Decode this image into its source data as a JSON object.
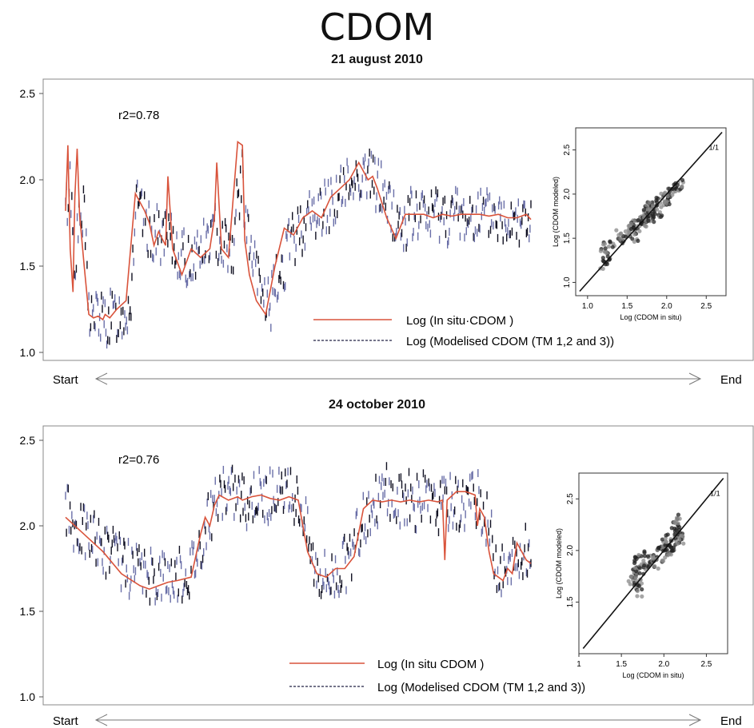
{
  "title": "CDOM",
  "chart_data": [
    {
      "type": "line",
      "subtitle": "21 august 2010",
      "annotation": "r2=0.78",
      "xlabel_start": "Start",
      "xlabel_end": "End",
      "ylim": [
        1.0,
        2.5
      ],
      "yticks": [
        "1.0",
        "1.5",
        "2.0",
        "2.5"
      ],
      "legend": [
        {
          "label": "Log (In situ·CDOM )",
          "color": "#d9533b",
          "style": "solid"
        },
        {
          "label": "Log (Modelised CDOM  (TM 1,2 and 3))",
          "color": "#222244",
          "style": "dashed"
        }
      ],
      "series": [
        {
          "name": "Log (In situ·CDOM )",
          "x": [
            0,
            0.5,
            1,
            1.6,
            2,
            2.5,
            3,
            4,
            5,
            6,
            7,
            8,
            8.5,
            9.5,
            11,
            13,
            15,
            17,
            18,
            19,
            20,
            21.5,
            22,
            23,
            25,
            27,
            29,
            31,
            32,
            32.5,
            33.5,
            35,
            37,
            38,
            38.5,
            39,
            39.5,
            41,
            43,
            45,
            47,
            49,
            51,
            53,
            55,
            57,
            59,
            61,
            63,
            64,
            65,
            66,
            67,
            69,
            71,
            73,
            75,
            77,
            79,
            81,
            83,
            85,
            87,
            89,
            91,
            93,
            95,
            97,
            99,
            100
          ],
          "values": [
            1.82,
            2.2,
            1.6,
            1.35,
            1.9,
            2.18,
            1.8,
            1.5,
            1.22,
            1.2,
            1.21,
            1.19,
            1.22,
            1.2,
            1.25,
            1.3,
            1.92,
            1.82,
            1.75,
            1.62,
            1.7,
            1.62,
            2.02,
            1.6,
            1.45,
            1.6,
            1.55,
            1.6,
            1.78,
            2.1,
            1.6,
            1.55,
            2.22,
            2.2,
            1.65,
            1.55,
            1.45,
            1.3,
            1.22,
            1.5,
            1.72,
            1.68,
            1.78,
            1.82,
            1.78,
            1.9,
            1.95,
            2.0,
            2.1,
            2.05,
            2.0,
            2.02,
            1.95,
            1.78,
            1.66,
            1.8,
            1.8,
            1.8,
            1.78,
            1.8,
            1.79,
            1.8,
            1.8,
            1.8,
            1.79,
            1.8,
            1.78,
            1.78,
            1.8,
            1.77
          ]
        },
        {
          "name": "Log (Modelised CDOM  (TM 1,2 and 3))",
          "x": [
            0,
            1,
            2,
            3,
            4,
            5,
            6,
            7,
            8,
            10,
            12,
            14,
            15,
            16,
            18,
            20,
            22,
            24,
            26,
            28,
            30,
            32,
            34,
            36,
            37,
            38,
            39,
            40,
            41,
            42,
            44,
            46,
            48,
            50,
            52,
            54,
            56,
            58,
            60,
            62,
            64,
            66,
            68,
            70,
            72,
            74,
            76,
            78,
            80,
            82,
            84,
            86,
            88,
            90,
            92,
            94,
            96,
            98,
            100
          ],
          "values": [
            1.8,
            2.0,
            1.55,
            1.75,
            1.8,
            1.25,
            1.2,
            1.22,
            1.18,
            1.2,
            1.22,
            1.28,
            1.85,
            1.8,
            1.7,
            1.68,
            1.65,
            1.6,
            1.52,
            1.58,
            1.62,
            1.7,
            1.65,
            1.6,
            1.9,
            2.0,
            1.7,
            1.55,
            1.45,
            1.35,
            1.28,
            1.45,
            1.6,
            1.7,
            1.78,
            1.8,
            1.85,
            1.9,
            1.95,
            2.0,
            2.05,
            2.0,
            1.95,
            1.82,
            1.72,
            1.78,
            1.8,
            1.78,
            1.82,
            1.78,
            1.8,
            1.77,
            1.82,
            1.78,
            1.8,
            1.76,
            1.82,
            1.78,
            1.75
          ]
        }
      ],
      "inset": {
        "type": "scatter",
        "xlabel": "Log (CDOM in situ)",
        "ylabel": "Log (CDOM modeled)",
        "xticks": [
          "1.0",
          "1.5",
          "2.0",
          "2.5"
        ],
        "yticks": [
          "1.0",
          "1.5",
          "2.0",
          "2.5"
        ],
        "xlim": [
          0.85,
          2.75
        ],
        "ylim": [
          0.85,
          2.75
        ],
        "line_label": "1/1",
        "x": [
          1.2,
          1.22,
          1.25,
          1.2,
          1.3,
          1.45,
          1.5,
          1.55,
          1.6,
          1.62,
          1.65,
          1.7,
          1.72,
          1.75,
          1.78,
          1.8,
          1.8,
          1.82,
          1.85,
          1.9,
          1.95,
          2.0,
          2.02,
          2.05,
          2.1,
          2.15,
          2.2,
          1.6,
          1.7,
          1.8,
          1.9,
          2.0,
          1.4,
          1.55,
          1.75
        ],
        "y": [
          1.2,
          1.3,
          1.25,
          1.4,
          1.45,
          1.5,
          1.55,
          1.6,
          1.65,
          1.6,
          1.7,
          1.72,
          1.68,
          1.75,
          1.8,
          1.75,
          1.85,
          1.8,
          1.82,
          1.9,
          1.95,
          1.95,
          2.0,
          2.02,
          2.05,
          2.1,
          2.1,
          1.5,
          1.65,
          1.7,
          1.8,
          1.9,
          1.55,
          1.65,
          1.85
        ]
      }
    },
    {
      "type": "line",
      "subtitle": "24 october 2010",
      "annotation": "r2=0.76",
      "xlabel_start": "Start",
      "xlabel_end": "End",
      "ylim": [
        1.0,
        2.5
      ],
      "yticks": [
        "1.0",
        "1.5",
        "2.0",
        "2.5"
      ],
      "legend": [
        {
          "label": "Log (In situ CDOM )",
          "color": "#d9533b",
          "style": "solid"
        },
        {
          "label": "Log (Modelised CDOM  (TM 1,2 and 3))",
          "color": "#222244",
          "style": "dashed"
        }
      ],
      "series": [
        {
          "name": "Log (In situ CDOM )",
          "x": [
            0,
            4,
            8,
            12,
            16,
            18,
            20,
            22,
            24,
            27,
            29,
            30,
            31,
            32,
            33,
            35,
            37,
            38,
            40,
            42,
            44,
            46,
            48,
            50,
            52,
            54,
            56,
            58,
            60,
            62,
            64,
            66,
            68,
            70,
            72,
            74,
            76,
            78,
            80,
            81,
            81.5,
            82,
            84,
            86,
            88,
            88.5,
            89,
            90,
            91,
            92,
            93,
            94,
            95,
            96,
            97,
            98,
            99,
            100
          ],
          "values": [
            2.05,
            1.95,
            1.85,
            1.72,
            1.65,
            1.63,
            1.65,
            1.67,
            1.68,
            1.7,
            1.95,
            2.05,
            2.0,
            2.12,
            2.18,
            2.15,
            2.17,
            2.15,
            2.17,
            2.18,
            2.16,
            2.15,
            2.17,
            2.15,
            1.85,
            1.72,
            1.7,
            1.75,
            1.75,
            1.82,
            2.1,
            2.15,
            2.14,
            2.15,
            2.14,
            2.15,
            2.14,
            2.15,
            2.14,
            2.15,
            1.8,
            2.15,
            2.2,
            2.2,
            2.18,
            2.0,
            2.1,
            2.05,
            1.85,
            1.72,
            1.7,
            1.68,
            1.75,
            1.72,
            1.9,
            1.85,
            1.8,
            1.78
          ]
        },
        {
          "name": "Log (Modelised CDOM  (TM 1,2 and 3))",
          "x": [
            0,
            3,
            6,
            9,
            12,
            15,
            18,
            21,
            24,
            27,
            29,
            31,
            33,
            35,
            37,
            39,
            41,
            43,
            45,
            47,
            49,
            51,
            53,
            55,
            57,
            59,
            61,
            63,
            65,
            67,
            69,
            71,
            73,
            75,
            77,
            79,
            81,
            83,
            85,
            87,
            89,
            91,
            93,
            95,
            97,
            99,
            100
          ],
          "values": [
            2.08,
            1.98,
            1.92,
            1.85,
            1.78,
            1.72,
            1.7,
            1.72,
            1.7,
            1.75,
            1.9,
            2.05,
            2.15,
            2.2,
            2.18,
            2.15,
            2.2,
            2.17,
            2.18,
            2.15,
            2.18,
            2.1,
            1.8,
            1.72,
            1.7,
            1.75,
            1.8,
            1.95,
            2.1,
            2.15,
            2.2,
            2.12,
            2.18,
            2.12,
            2.15,
            2.1,
            2.12,
            2.15,
            2.12,
            2.18,
            2.15,
            2.0,
            1.75,
            1.72,
            1.78,
            1.85,
            1.85
          ]
        }
      ],
      "inset": {
        "type": "scatter",
        "xlabel": "Log (CDOM in situ)",
        "ylabel": "Log (CDOM modeled)",
        "xticks": [
          "1",
          "1.5",
          "2.0",
          "2.5"
        ],
        "yticks": [
          "1.5",
          "2.0",
          "2.5"
        ],
        "xlim": [
          1.0,
          2.75
        ],
        "ylim": [
          1.0,
          2.75
        ],
        "line_label": "1/1",
        "x": [
          1.62,
          1.65,
          1.68,
          1.7,
          1.72,
          1.75,
          1.68,
          1.65,
          1.7,
          1.78,
          1.85,
          1.9,
          1.95,
          2.0,
          2.02,
          2.05,
          2.1,
          2.12,
          2.15,
          2.15,
          2.18,
          2.12,
          2.1,
          2.15,
          2.2,
          1.8,
          1.9,
          2.0,
          2.05,
          1.72
        ],
        "y": [
          1.7,
          1.75,
          1.8,
          1.72,
          1.78,
          1.82,
          1.65,
          1.85,
          1.9,
          1.85,
          1.9,
          1.95,
          2.0,
          1.95,
          2.05,
          2.0,
          2.05,
          2.15,
          2.1,
          2.2,
          2.15,
          2.25,
          2.0,
          2.3,
          2.1,
          1.95,
          1.88,
          2.08,
          2.12,
          1.6
        ]
      }
    }
  ]
}
